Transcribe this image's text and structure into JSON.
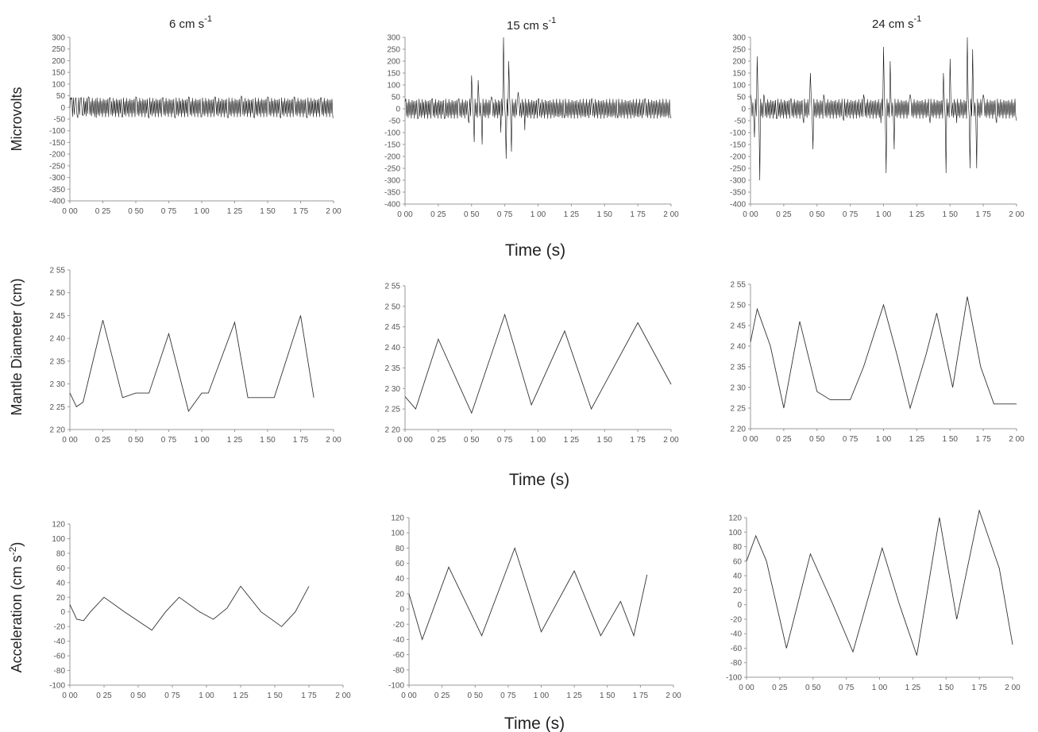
{
  "columns": [
    {
      "title_prefix": "6 cm s",
      "title_exp": "-1"
    },
    {
      "title_prefix": "15 cm s",
      "title_exp": "-1"
    },
    {
      "title_prefix": "24 cm s",
      "title_exp": "-1"
    }
  ],
  "row_labels": {
    "emg": "Microvolts",
    "mantle": "Mantle Diameter (cm)",
    "accel_prefix": "Acceleration (cm s",
    "accel_exp": "-2",
    "accel_suffix": ")"
  },
  "xlabels": [
    "Time (s)",
    "Time (s)",
    "Time (s)"
  ],
  "colors": {
    "trace": "#333333",
    "emg_trace": "#111111",
    "axis": "#999999"
  },
  "chart_data": [
    {
      "type": "line",
      "row": "emg",
      "column": "6 cm s-1",
      "xlim": [
        0,
        2
      ],
      "ylim": [
        -400,
        300
      ],
      "x_ticks": [
        "0 00",
        "0 25",
        "0 50",
        "0 75",
        "1 00",
        "1 25",
        "1 50",
        "1 75",
        "2 00"
      ],
      "y_ticks": [
        "300",
        "250",
        "200",
        "150",
        "100",
        "50",
        "0",
        "-50",
        "-100",
        "-150",
        "-200",
        "-250",
        "-300",
        "-350",
        "-400"
      ],
      "series": [
        {
          "values": [
            [
              0.0,
              0
            ],
            [
              0.01,
              35
            ],
            [
              0.02,
              -40
            ],
            [
              0.04,
              30
            ],
            [
              0.06,
              -45
            ],
            [
              0.08,
              40
            ],
            [
              0.1,
              -35
            ],
            [
              0.14,
              45
            ],
            [
              0.2,
              -45
            ],
            [
              0.3,
              40
            ],
            [
              0.4,
              -40
            ],
            [
              0.5,
              45
            ],
            [
              0.6,
              -45
            ],
            [
              0.7,
              40
            ],
            [
              0.8,
              -45
            ],
            [
              0.9,
              45
            ],
            [
              1.0,
              -40
            ],
            [
              1.1,
              45
            ],
            [
              1.2,
              -45
            ],
            [
              1.3,
              50
            ],
            [
              1.4,
              -45
            ],
            [
              1.5,
              45
            ],
            [
              1.6,
              -45
            ],
            [
              1.7,
              45
            ],
            [
              1.8,
              -45
            ],
            [
              1.9,
              40
            ],
            [
              2.0,
              -45
            ]
          ]
        }
      ]
    },
    {
      "type": "line",
      "row": "emg",
      "column": "15 cm s-1",
      "xlim": [
        0,
        2
      ],
      "ylim": [
        -400,
        300
      ],
      "x_ticks": [
        "0 00",
        "0 25",
        "0 50",
        "0 75",
        "1 00",
        "1 25",
        "1 50",
        "1 75",
        "2 00"
      ],
      "y_ticks": [
        "300",
        "250",
        "200",
        "150",
        "100",
        "50",
        "0",
        "-50",
        "-100",
        "-150",
        "-200",
        "-250",
        "-300",
        "-350",
        "-400"
      ],
      "series": [
        {
          "values": [
            [
              0.0,
              30
            ],
            [
              0.1,
              -40
            ],
            [
              0.2,
              40
            ],
            [
              0.3,
              -40
            ],
            [
              0.4,
              40
            ],
            [
              0.48,
              -60
            ],
            [
              0.5,
              140
            ],
            [
              0.52,
              -140
            ],
            [
              0.55,
              120
            ],
            [
              0.58,
              -150
            ],
            [
              0.65,
              50
            ],
            [
              0.72,
              -100
            ],
            [
              0.74,
              300
            ],
            [
              0.76,
              -210
            ],
            [
              0.78,
              200
            ],
            [
              0.8,
              -180
            ],
            [
              0.85,
              70
            ],
            [
              0.9,
              -90
            ],
            [
              1.0,
              40
            ],
            [
              1.2,
              -40
            ],
            [
              1.4,
              40
            ],
            [
              1.6,
              -40
            ],
            [
              1.8,
              40
            ],
            [
              2.0,
              -40
            ]
          ]
        }
      ]
    },
    {
      "type": "line",
      "row": "emg",
      "column": "24 cm s-1",
      "xlim": [
        0,
        2
      ],
      "ylim": [
        -400,
        300
      ],
      "x_ticks": [
        "0 00",
        "0 25",
        "0 50",
        "0 75",
        "1 00",
        "1 25",
        "1 50",
        "1 75",
        "2 00"
      ],
      "y_ticks": [
        "300",
        "250",
        "200",
        "150",
        "100",
        "50",
        "0",
        "-50",
        "-100",
        "-150",
        "-200",
        "-250",
        "-300",
        "-350",
        "-400"
      ],
      "series": [
        {
          "values": [
            [
              0.0,
              60
            ],
            [
              0.03,
              -120
            ],
            [
              0.05,
              220
            ],
            [
              0.07,
              -300
            ],
            [
              0.1,
              60
            ],
            [
              0.2,
              -40
            ],
            [
              0.3,
              40
            ],
            [
              0.4,
              -60
            ],
            [
              0.45,
              150
            ],
            [
              0.47,
              -170
            ],
            [
              0.55,
              60
            ],
            [
              0.7,
              -50
            ],
            [
              0.85,
              60
            ],
            [
              0.98,
              -60
            ],
            [
              1.0,
              260
            ],
            [
              1.02,
              -270
            ],
            [
              1.05,
              200
            ],
            [
              1.08,
              -170
            ],
            [
              1.2,
              60
            ],
            [
              1.35,
              -60
            ],
            [
              1.45,
              150
            ],
            [
              1.47,
              -270
            ],
            [
              1.5,
              210
            ],
            [
              1.55,
              -60
            ],
            [
              1.63,
              300
            ],
            [
              1.65,
              -250
            ],
            [
              1.67,
              250
            ],
            [
              1.7,
              -250
            ],
            [
              1.75,
              60
            ],
            [
              1.85,
              -60
            ],
            [
              2.0,
              -50
            ]
          ]
        }
      ]
    },
    {
      "type": "line",
      "row": "mantle",
      "column": "6 cm s-1",
      "xlim": [
        0,
        2
      ],
      "ylim": [
        2.2,
        2.55
      ],
      "x_ticks": [
        "0 00",
        "0 25",
        "0 50",
        "0 75",
        "1 00",
        "1 25",
        "1 50",
        "1 75",
        "2 00"
      ],
      "y_ticks": [
        "2 55",
        "2 50",
        "2 45",
        "2 40",
        "2 35",
        "2 30",
        "2 25",
        "2 20"
      ],
      "series": [
        {
          "values": [
            [
              0.0,
              2.28
            ],
            [
              0.05,
              2.25
            ],
            [
              0.1,
              2.26
            ],
            [
              0.25,
              2.44
            ],
            [
              0.4,
              2.27
            ],
            [
              0.5,
              2.28
            ],
            [
              0.6,
              2.28
            ],
            [
              0.75,
              2.41
            ],
            [
              0.9,
              2.24
            ],
            [
              1.0,
              2.28
            ],
            [
              1.05,
              2.28
            ],
            [
              1.25,
              2.435
            ],
            [
              1.35,
              2.27
            ],
            [
              1.55,
              2.27
            ],
            [
              1.75,
              2.45
            ],
            [
              1.85,
              2.27
            ]
          ]
        }
      ]
    },
    {
      "type": "line",
      "row": "mantle",
      "column": "15 cm s-1",
      "xlim": [
        0,
        2
      ],
      "ylim": [
        2.2,
        2.55
      ],
      "x_ticks": [
        "0 00",
        "0 25",
        "0 50",
        "0 75",
        "1 00",
        "1 25",
        "1 50",
        "1 75",
        "2 00"
      ],
      "y_ticks": [
        "2 55",
        "2 50",
        "2 45",
        "2 40",
        "2 35",
        "2 30",
        "2 25",
        "2 20"
      ],
      "series": [
        {
          "values": [
            [
              0.0,
              2.28
            ],
            [
              0.08,
              2.25
            ],
            [
              0.25,
              2.42
            ],
            [
              0.5,
              2.24
            ],
            [
              0.75,
              2.48
            ],
            [
              0.95,
              2.26
            ],
            [
              1.2,
              2.44
            ],
            [
              1.4,
              2.25
            ],
            [
              1.75,
              2.46
            ],
            [
              2.0,
              2.31
            ]
          ]
        }
      ]
    },
    {
      "type": "line",
      "row": "mantle",
      "column": "24 cm s-1",
      "xlim": [
        0,
        2
      ],
      "ylim": [
        2.2,
        2.55
      ],
      "x_ticks": [
        "0 00",
        "0 25",
        "0 50",
        "0 75",
        "1 00",
        "1 25",
        "1 50",
        "1 75",
        "2 00"
      ],
      "y_ticks": [
        "2 55",
        "2 50",
        "2 45",
        "2 40",
        "2 35",
        "2 30",
        "2 25",
        "2 20"
      ],
      "series": [
        {
          "values": [
            [
              0.0,
              2.41
            ],
            [
              0.05,
              2.49
            ],
            [
              0.15,
              2.4
            ],
            [
              0.25,
              2.25
            ],
            [
              0.37,
              2.46
            ],
            [
              0.5,
              2.29
            ],
            [
              0.6,
              2.27
            ],
            [
              0.75,
              2.27
            ],
            [
              0.85,
              2.35
            ],
            [
              1.0,
              2.5
            ],
            [
              1.1,
              2.38
            ],
            [
              1.2,
              2.25
            ],
            [
              1.32,
              2.38
            ],
            [
              1.4,
              2.48
            ],
            [
              1.52,
              2.3
            ],
            [
              1.63,
              2.52
            ],
            [
              1.73,
              2.35
            ],
            [
              1.83,
              2.26
            ],
            [
              2.0,
              2.26
            ]
          ]
        }
      ]
    },
    {
      "type": "line",
      "row": "acceleration",
      "column": "6 cm s-1",
      "xlim": [
        0,
        2
      ],
      "ylim": [
        -100,
        120
      ],
      "x_ticks": [
        "0 00",
        "0 25",
        "0 50",
        "0 75",
        "1 00",
        "1 25",
        "1 50",
        "1 75",
        "2 00"
      ],
      "y_ticks": [
        "120",
        "100",
        "80",
        "60",
        "40",
        "20",
        "0",
        "-20",
        "-40",
        "-60",
        "-80",
        "-100"
      ],
      "series": [
        {
          "values": [
            [
              0.0,
              10
            ],
            [
              0.05,
              -10
            ],
            [
              0.1,
              -12
            ],
            [
              0.15,
              0
            ],
            [
              0.25,
              20
            ],
            [
              0.4,
              0
            ],
            [
              0.6,
              -25
            ],
            [
              0.7,
              0
            ],
            [
              0.8,
              20
            ],
            [
              0.95,
              0
            ],
            [
              1.05,
              -10
            ],
            [
              1.15,
              5
            ],
            [
              1.25,
              35
            ],
            [
              1.4,
              0
            ],
            [
              1.55,
              -20
            ],
            [
              1.65,
              0
            ],
            [
              1.75,
              35
            ]
          ]
        }
      ]
    },
    {
      "type": "line",
      "row": "acceleration",
      "column": "15 cm s-1",
      "xlim": [
        0,
        2
      ],
      "ylim": [
        -100,
        120
      ],
      "x_ticks": [
        "0 00",
        "0 25",
        "0 50",
        "0 75",
        "1 00",
        "1 25",
        "1 50",
        "1 75",
        "2 00"
      ],
      "y_ticks": [
        "120",
        "100",
        "80",
        "60",
        "40",
        "20",
        "0",
        "-20",
        "-40",
        "-60",
        "-80",
        "-100"
      ],
      "series": [
        {
          "values": [
            [
              0.0,
              20
            ],
            [
              0.1,
              -40
            ],
            [
              0.3,
              55
            ],
            [
              0.55,
              -35
            ],
            [
              0.8,
              80
            ],
            [
              1.0,
              -30
            ],
            [
              1.25,
              50
            ],
            [
              1.45,
              -35
            ],
            [
              1.6,
              10
            ],
            [
              1.7,
              -35
            ],
            [
              1.8,
              45
            ]
          ]
        }
      ]
    },
    {
      "type": "line",
      "row": "acceleration",
      "column": "24 cm s-1",
      "xlim": [
        0,
        2
      ],
      "ylim": [
        -100,
        120
      ],
      "x_ticks": [
        "0 00",
        "0 25",
        "0 50",
        "0 75",
        "1 00",
        "1 25",
        "1 50",
        "1 75",
        "2 00"
      ],
      "y_ticks": [
        "120",
        "100",
        "80",
        "60",
        "40",
        "20",
        "0",
        "-20",
        "-40",
        "-60",
        "-80",
        "-100"
      ],
      "series": [
        {
          "values": [
            [
              0.0,
              60
            ],
            [
              0.07,
              95
            ],
            [
              0.15,
              60
            ],
            [
              0.3,
              -60
            ],
            [
              0.48,
              70
            ],
            [
              0.65,
              0
            ],
            [
              0.8,
              -65
            ],
            [
              1.02,
              78
            ],
            [
              1.15,
              0
            ],
            [
              1.28,
              -70
            ],
            [
              1.45,
              120
            ],
            [
              1.58,
              -20
            ],
            [
              1.75,
              130
            ],
            [
              1.9,
              50
            ],
            [
              2.0,
              -55
            ]
          ]
        }
      ]
    }
  ]
}
